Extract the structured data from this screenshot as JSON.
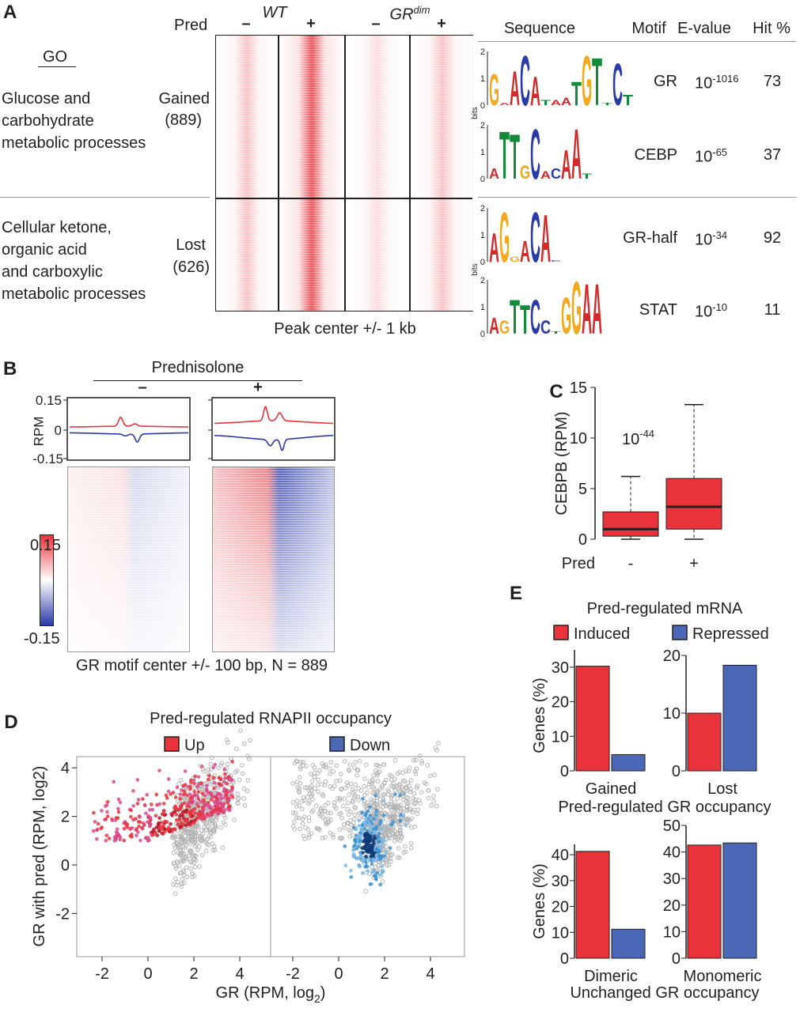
{
  "panelA": {
    "label": "A",
    "pred": "Pred",
    "wt": "WT",
    "grdim": "GR",
    "grdim_sup": "dim",
    "minus": "–",
    "plus": "+",
    "go": "GO",
    "gained_go": [
      "Glucose and",
      "carbohydrate",
      "metabolic processes"
    ],
    "gained": "Gained",
    "gained_n": "(889)",
    "lost_go": [
      "Cellular ketone,",
      "organic acid",
      "and carboxylic",
      "metabolic processes"
    ],
    "lost": "Lost",
    "lost_n": "(626)",
    "xcaption": "Peak center +/- 1 kb",
    "heatmap_colors": {
      "high": "#e8333a",
      "low": "#ffffff"
    },
    "table": {
      "headers": [
        "Sequence",
        "Motif",
        "E-value",
        "Hit %"
      ],
      "bits_label": "bits",
      "yticks": [
        "2",
        "1",
        "0"
      ],
      "rows": [
        {
          "motif": "GR",
          "evalue_base": "10",
          "evalue_exp": "-1016",
          "hit": "73",
          "logo": [
            [
              "G",
              1.2
            ],
            [
              "A",
              0.1
            ],
            [
              "A",
              1.3
            ],
            [
              "C",
              1.9
            ],
            [
              "A",
              1.1
            ],
            [
              "T",
              0.2
            ],
            [
              "A",
              0.2
            ],
            [
              "A",
              0.3
            ],
            [
              "T",
              0.9
            ],
            [
              "G",
              1.9
            ],
            [
              "T",
              1.8
            ],
            [
              "T",
              0.1
            ],
            [
              "C",
              1.6
            ],
            [
              "T",
              0.4
            ]
          ]
        },
        {
          "motif": "CEBP",
          "evalue_base": "10",
          "evalue_exp": "-65",
          "hit": "37",
          "logo": [
            [
              "A",
              0.4
            ],
            [
              "T",
              1.8
            ],
            [
              "T",
              1.7
            ],
            [
              "G",
              0.5
            ],
            [
              "C",
              1.9
            ],
            [
              "A",
              0.3
            ],
            [
              "C",
              0.4
            ],
            [
              "A",
              1.1
            ],
            [
              "A",
              1.9
            ],
            [
              "T",
              0.2
            ]
          ]
        },
        {
          "motif": "GR-half",
          "evalue_base": "10",
          "evalue_exp": "-34",
          "hit": "92",
          "logo": [
            [
              "A",
              1.1
            ],
            [
              "G",
              1.9
            ],
            [
              "G",
              0.2
            ],
            [
              "A",
              0.8
            ],
            [
              "C",
              1.9
            ],
            [
              "A",
              1.8
            ],
            [
              "C",
              0.05
            ]
          ]
        },
        {
          "motif": "STAT",
          "evalue_base": "10",
          "evalue_exp": "-10",
          "hit": "11",
          "logo": [
            [
              "A",
              0.6
            ],
            [
              "G",
              0.5
            ],
            [
              "T",
              1.3
            ],
            [
              "T",
              1.1
            ],
            [
              "C",
              1.3
            ],
            [
              "C",
              0.5
            ],
            [
              "T",
              0.1
            ],
            [
              "G",
              1.4
            ],
            [
              "G",
              2.0
            ],
            [
              "A",
              1.9
            ],
            [
              "A",
              1.9
            ]
          ]
        }
      ]
    },
    "base_colors": {
      "A": "#d62a2a",
      "C": "#2a3aa8",
      "G": "#f4a81c",
      "T": "#138a3a"
    }
  },
  "panelB": {
    "label": "B",
    "title": "Prednisolone",
    "minus": "–",
    "plus": "+",
    "ylabel": "RPM",
    "yticks": [
      "0.15",
      "0",
      "-0.15"
    ],
    "colorbar": {
      "max": "0.15",
      "min": "-0.15",
      "high": "#e8333a",
      "low": "#2a3aa8"
    },
    "caption": "GR motif center +/- 100 bp, N = 889"
  },
  "chart_data": [
    {
      "id": "C",
      "type": "box",
      "label": "C",
      "ylabel": "CEBPB (RPM)",
      "xlabel": "Pred",
      "categories": [
        "-",
        "+"
      ],
      "ylim": [
        0,
        15
      ],
      "yticks": [
        "0",
        "5",
        "10",
        "15"
      ],
      "annotation_base": "10",
      "annotation_exp": "-44",
      "color": "#e8333a",
      "boxes": [
        {
          "min": 0,
          "q1": 0.3,
          "median": 1.0,
          "q3": 2.7,
          "max": 6.2
        },
        {
          "min": 0,
          "q1": 1.0,
          "median": 3.2,
          "q3": 6.0,
          "max": 13.3
        }
      ]
    },
    {
      "id": "E",
      "type": "bar",
      "label": "E",
      "title": "Pred-regulated mRNA",
      "legend": [
        "Induced",
        "Repressed"
      ],
      "colors": [
        "#e8333a",
        "#4a68b6"
      ],
      "ylabel": "Genes (%)",
      "groups": [
        {
          "caption": "Pred-regulated GR occupancy",
          "panels": [
            {
              "category": "Gained",
              "values": [
                30.3,
                4.7
              ],
              "ylim": [
                0,
                35
              ],
              "yticks": [
                "0",
                "10",
                "20",
                "30"
              ]
            },
            {
              "category": "Lost",
              "values": [
                10,
                18.3
              ],
              "ylim": [
                0,
                20
              ],
              "yticks": [
                "0",
                "10",
                "20"
              ]
            }
          ]
        },
        {
          "caption": "Unchanged GR occupancy",
          "panels": [
            {
              "category": "Dimeric",
              "values": [
                41.3,
                11.2
              ],
              "ylim": [
                0,
                44
              ],
              "yticks": [
                "0",
                "10",
                "20",
                "30",
                "40"
              ]
            },
            {
              "category": "Monomeric",
              "values": [
                42.6,
                43.4
              ],
              "ylim": [
                0,
                50
              ],
              "yticks": [
                "0",
                "10",
                "20",
                "30",
                "40",
                "50"
              ]
            }
          ]
        }
      ]
    },
    {
      "id": "D",
      "type": "scatter",
      "label": "D",
      "title": "Pred-regulated RNAPII occupancy",
      "legend": [
        "Up",
        "Down"
      ],
      "colors": [
        "#e8333a",
        "#4a68b6"
      ],
      "xlabel": "GR (RPM, log",
      "xlabel_sub": "2",
      "xlabel_end": ")",
      "ylabel": "GR with pred (RPM, log2)",
      "xlim": [
        -3.1,
        5.3
      ],
      "ylim": [
        -3.2,
        5.8
      ],
      "xticks": [
        "-2",
        "0",
        "2",
        "4"
      ],
      "yticks": [
        "-2",
        "0",
        "2",
        "4"
      ],
      "background_color": "#b3b3b3"
    }
  ]
}
